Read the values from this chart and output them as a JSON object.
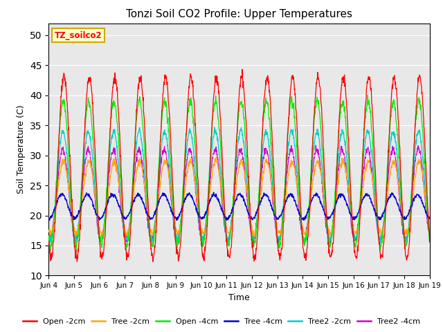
{
  "title": "Tonzi Soil CO2 Profile: Upper Temperatures",
  "xlabel": "Time",
  "ylabel": "Soil Temperature (C)",
  "ylim": [
    10,
    52
  ],
  "yticks": [
    10,
    15,
    20,
    25,
    30,
    35,
    40,
    45,
    50
  ],
  "background_color": "#e8e8e8",
  "series_colors": {
    "Open -2cm": "#ff0000",
    "Tree -2cm": "#ffa500",
    "Open -4cm": "#00ee00",
    "Tree -4cm": "#0000cc",
    "Tree2 -2cm": "#00cccc",
    "Tree2 -4cm": "#cc00cc"
  },
  "legend_label": "TZ_soilco2",
  "legend_box_color": "#ffffcc",
  "legend_box_edge": "#ccaa00",
  "n_days": 15,
  "pts_per_day": 96,
  "figsize": [
    6.4,
    4.8
  ],
  "dpi": 100
}
